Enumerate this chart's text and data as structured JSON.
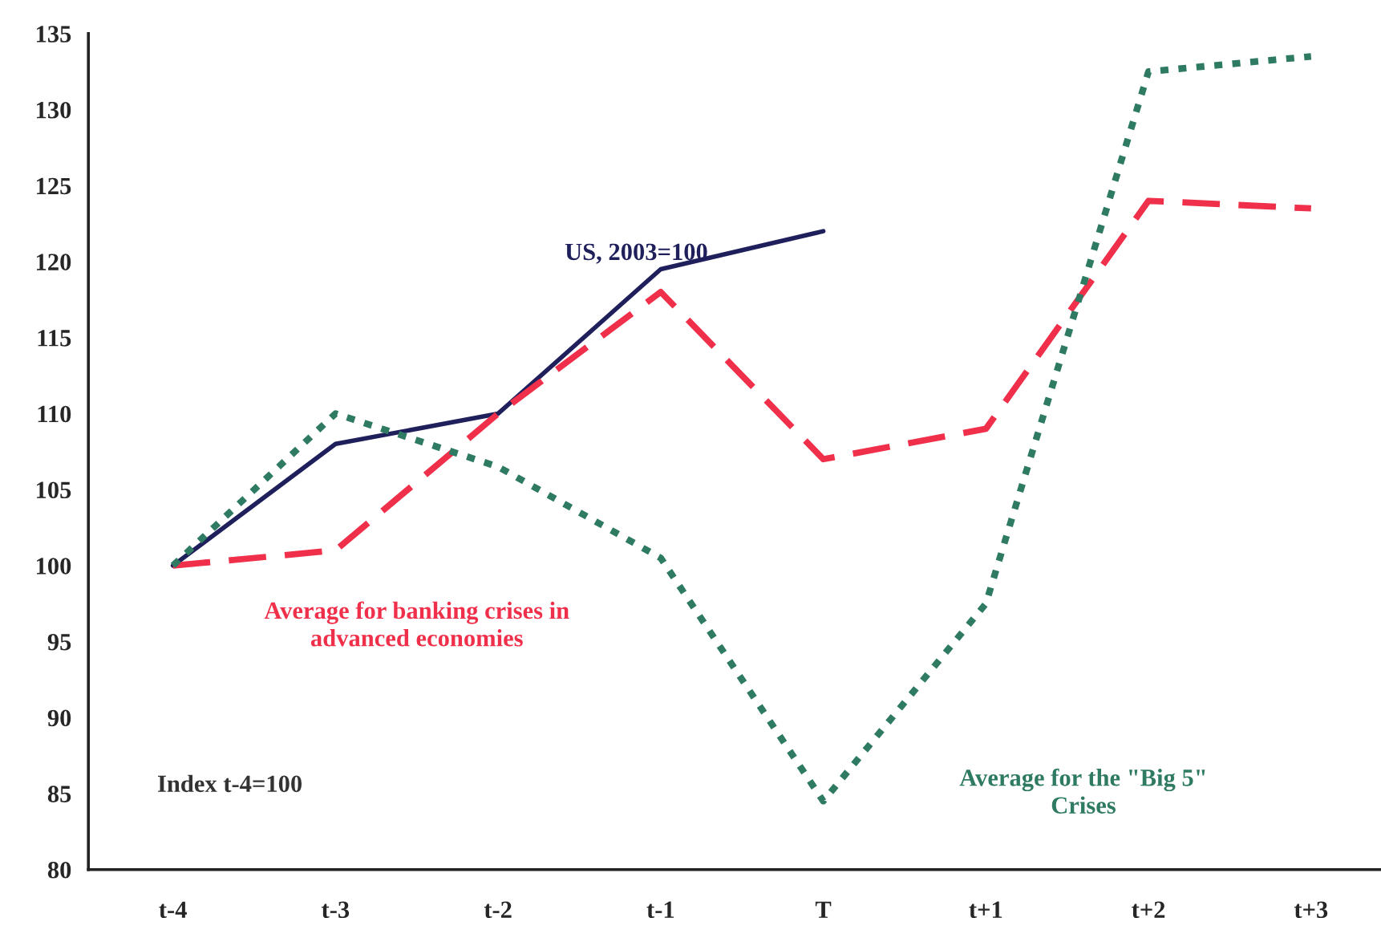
{
  "chart_data": {
    "type": "line",
    "categories": [
      "t-4",
      "t-3",
      "t-2",
      "t-1",
      "T",
      "t+1",
      "t+2",
      "t+3"
    ],
    "series": [
      {
        "name": "US, 2003=100",
        "color": "#1f1f5c",
        "line_style": "solid",
        "values": [
          100,
          108,
          110,
          119.5,
          122,
          null,
          null,
          null
        ]
      },
      {
        "name": "Average for banking crises in\nadvanced economies",
        "color": "#f0304a",
        "line_style": "dashed",
        "values": [
          100,
          101,
          110,
          118,
          107,
          109,
          124,
          123.5
        ]
      },
      {
        "name": "Average for the \"Big 5\"\nCrises",
        "color": "#2e7a62",
        "line_style": "dotted",
        "values": [
          100,
          110,
          106.5,
          100.5,
          84.5,
          97.5,
          132.5,
          133.5
        ]
      }
    ],
    "annotations": [
      "Index t-4=100"
    ],
    "ylim": [
      80,
      135
    ],
    "yticks": [
      80,
      85,
      90,
      95,
      100,
      105,
      110,
      115,
      120,
      125,
      130,
      135
    ],
    "grid": false,
    "legend": false,
    "marker": "none"
  }
}
